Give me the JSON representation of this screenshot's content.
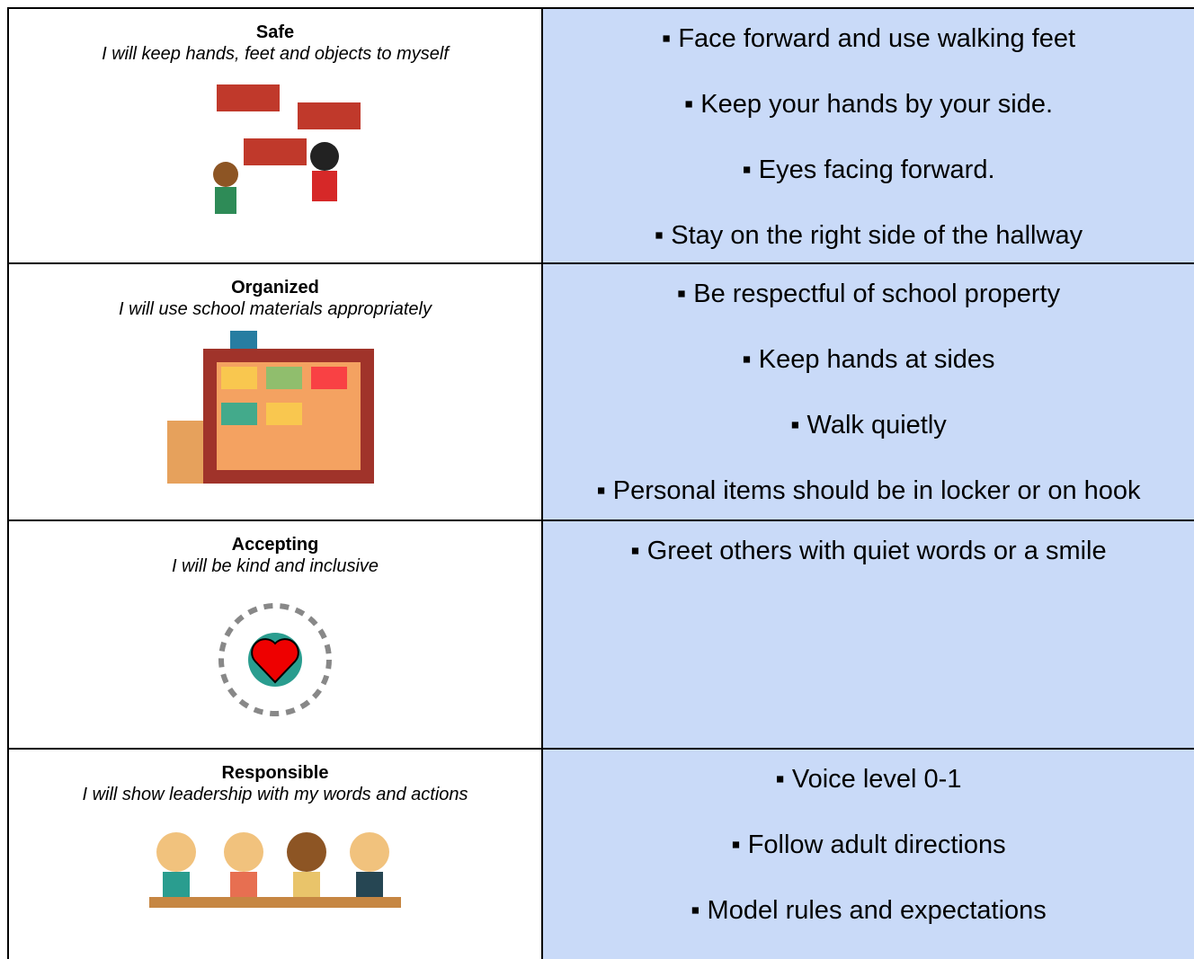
{
  "table": {
    "rows": [
      {
        "title": "Safe",
        "subtitle": "I will keep hands, feet and objects to myself",
        "items": [
          "▪ Face forward and use walking feet",
          "▪ Keep your hands by your side.",
          "▪ Eyes facing forward.",
          "▪ Stay on the right side of the hallway"
        ]
      },
      {
        "title": "Organized",
        "subtitle": "I will use school materials appropriately",
        "items": [
          "▪ Be respectful of school property",
          "▪ Keep hands at sides",
          "▪ Walk quietly",
          "▪ Personal items should be in locker or on hook"
        ]
      },
      {
        "title": "Accepting",
        "subtitle": "I will be kind and inclusive",
        "items": [
          "▪ Greet others with quiet words or a smile"
        ]
      },
      {
        "title": "Responsible",
        "subtitle": "I will show leadership with my words and actions",
        "items": [
          "▪ Voice level 0-1",
          "▪ Follow adult directions",
          "▪ Model rules and expectations"
        ]
      }
    ]
  }
}
